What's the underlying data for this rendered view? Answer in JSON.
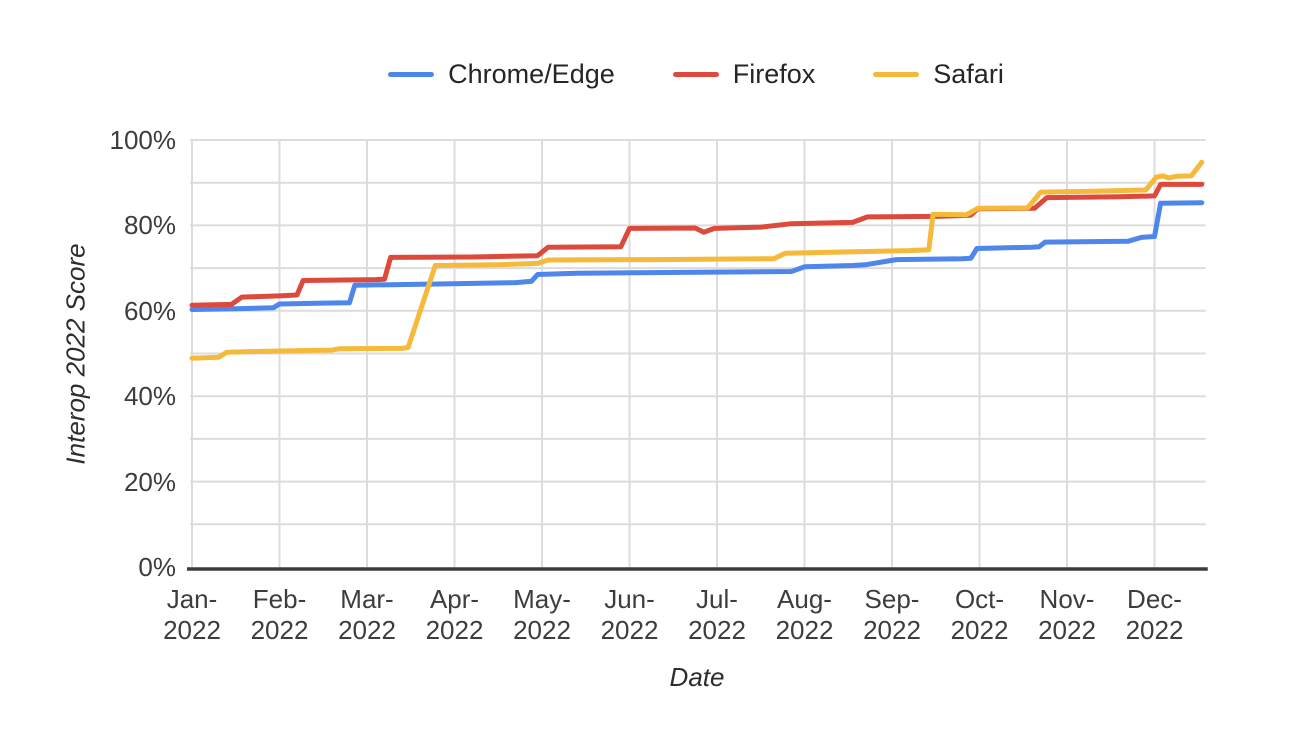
{
  "chart_data": {
    "type": "line",
    "title": "",
    "xlabel": "Date",
    "ylabel": "Interop 2022 Score",
    "legend_position": "top-center",
    "grid": {
      "horizontal_step_pct": 10,
      "vertical": "monthly",
      "on": true
    },
    "ylim": [
      0,
      100
    ],
    "y_ticks": [
      0,
      20,
      40,
      60,
      80,
      100
    ],
    "y_tick_labels": [
      "0%",
      "20%",
      "40%",
      "60%",
      "80%",
      "100%"
    ],
    "x_range_months": [
      0,
      11.54
    ],
    "x_tick_labels": [
      [
        "Jan-",
        "2022"
      ],
      [
        "Feb-",
        "2022"
      ],
      [
        "Mar-",
        "2022"
      ],
      [
        "Apr-",
        "2022"
      ],
      [
        "May-",
        "2022"
      ],
      [
        "Jun-",
        "2022"
      ],
      [
        "Jul-",
        "2022"
      ],
      [
        "Aug-",
        "2022"
      ],
      [
        "Sep-",
        "2022"
      ],
      [
        "Oct-",
        "2022"
      ],
      [
        "Nov-",
        "2022"
      ],
      [
        "Dec-",
        "2022"
      ]
    ],
    "series": [
      {
        "name": "Chrome/Edge",
        "color": "#4e86ec",
        "points": [
          [
            0,
            60.3
          ],
          [
            0.5,
            60.5
          ],
          [
            0.93,
            60.7
          ],
          [
            1.0,
            61.6
          ],
          [
            1.5,
            61.8
          ],
          [
            1.8,
            61.9
          ],
          [
            1.86,
            66.0
          ],
          [
            2.9,
            66.3
          ],
          [
            3.7,
            66.6
          ],
          [
            3.88,
            66.9
          ],
          [
            3.95,
            68.5
          ],
          [
            4.4,
            68.8
          ],
          [
            5.6,
            69.0
          ],
          [
            6.85,
            69.2
          ],
          [
            7.0,
            70.3
          ],
          [
            7.55,
            70.6
          ],
          [
            7.7,
            70.8
          ],
          [
            8.05,
            72.0
          ],
          [
            8.8,
            72.2
          ],
          [
            8.9,
            72.3
          ],
          [
            8.97,
            74.6
          ],
          [
            9.6,
            74.9
          ],
          [
            9.68,
            75.0
          ],
          [
            9.75,
            76.1
          ],
          [
            10.7,
            76.3
          ],
          [
            10.85,
            77.2
          ],
          [
            11.0,
            77.4
          ],
          [
            11.07,
            85.2
          ],
          [
            11.54,
            85.3
          ]
        ]
      },
      {
        "name": "Firefox",
        "color": "#db4a3c",
        "points": [
          [
            0,
            61.3
          ],
          [
            0.45,
            61.5
          ],
          [
            0.57,
            63.2
          ],
          [
            1.0,
            63.5
          ],
          [
            1.2,
            63.7
          ],
          [
            1.27,
            67.1
          ],
          [
            2.1,
            67.3
          ],
          [
            2.2,
            67.4
          ],
          [
            2.27,
            72.5
          ],
          [
            3.2,
            72.6
          ],
          [
            3.95,
            72.9
          ],
          [
            4.07,
            74.9
          ],
          [
            4.9,
            75.0
          ],
          [
            5.0,
            79.3
          ],
          [
            5.75,
            79.4
          ],
          [
            5.85,
            78.4
          ],
          [
            5.97,
            79.3
          ],
          [
            6.5,
            79.6
          ],
          [
            6.85,
            80.4
          ],
          [
            7.55,
            80.7
          ],
          [
            7.72,
            82.0
          ],
          [
            8.5,
            82.1
          ],
          [
            8.9,
            82.4
          ],
          [
            8.98,
            83.9
          ],
          [
            9.63,
            84.0
          ],
          [
            9.77,
            86.5
          ],
          [
            10.6,
            86.7
          ],
          [
            11.0,
            86.9
          ],
          [
            11.07,
            89.6
          ],
          [
            11.54,
            89.6
          ]
        ]
      },
      {
        "name": "Safari",
        "color": "#f5ba3c",
        "points": [
          [
            0,
            48.9
          ],
          [
            0.3,
            49.1
          ],
          [
            0.4,
            50.3
          ],
          [
            0.8,
            50.5
          ],
          [
            1.3,
            50.7
          ],
          [
            1.6,
            50.8
          ],
          [
            1.68,
            51.1
          ],
          [
            2.4,
            51.2
          ],
          [
            2.47,
            51.4
          ],
          [
            2.78,
            70.6
          ],
          [
            3.5,
            70.8
          ],
          [
            3.95,
            71.1
          ],
          [
            4.07,
            71.9
          ],
          [
            5.3,
            72.0
          ],
          [
            6.65,
            72.2
          ],
          [
            6.78,
            73.5
          ],
          [
            7.5,
            73.8
          ],
          [
            8.2,
            74.1
          ],
          [
            8.42,
            74.3
          ],
          [
            8.47,
            82.6
          ],
          [
            8.85,
            82.5
          ],
          [
            8.98,
            84.0
          ],
          [
            9.55,
            84.1
          ],
          [
            9.7,
            87.8
          ],
          [
            10.3,
            88.0
          ],
          [
            10.9,
            88.3
          ],
          [
            11.02,
            91.3
          ],
          [
            11.1,
            91.6
          ],
          [
            11.16,
            91.1
          ],
          [
            11.25,
            91.5
          ],
          [
            11.42,
            91.6
          ],
          [
            11.54,
            94.8
          ]
        ]
      }
    ],
    "axis_colors": {
      "gridline": "#dcdcdc",
      "baseline": "#3b3b3b",
      "tick_text": "#3d3d3d"
    }
  }
}
